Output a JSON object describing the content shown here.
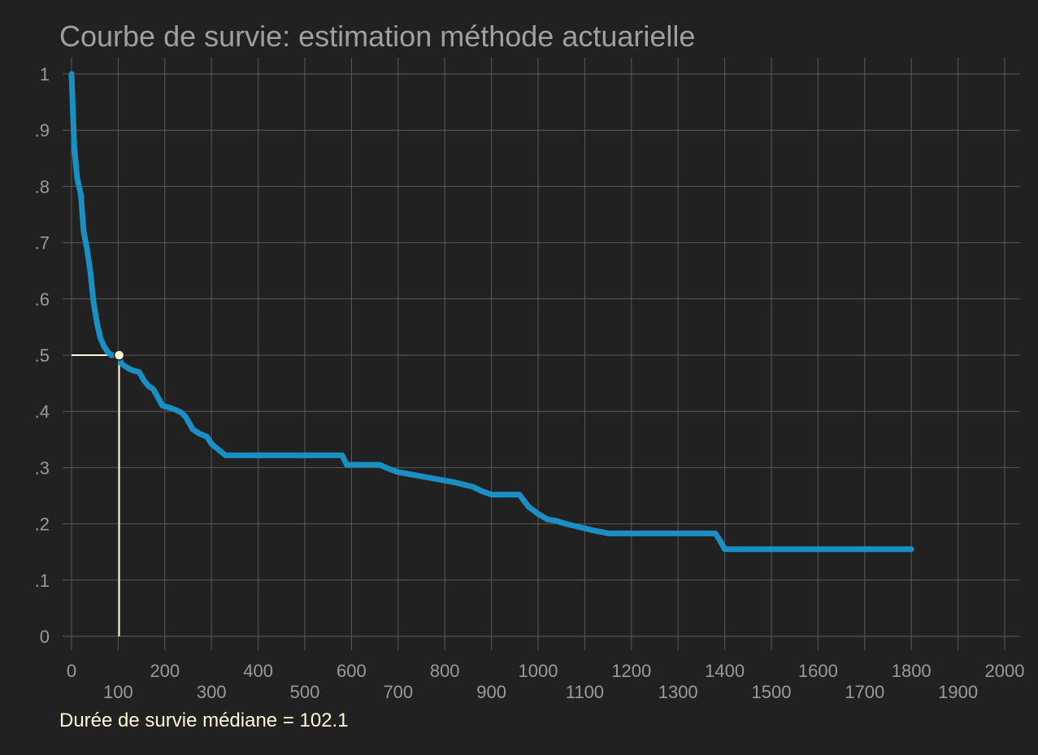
{
  "chart_data": {
    "type": "line",
    "title": "Courbe de survie: estimation méthode actuarielle",
    "xlabel": "",
    "ylabel": "",
    "xlim": [
      0,
      2000
    ],
    "ylim": [
      0,
      1
    ],
    "grid": true,
    "x_ticks": [
      "0",
      "100",
      "200",
      "300",
      "400",
      "500",
      "600",
      "700",
      "800",
      "900",
      "1000",
      "1100",
      "1200",
      "1300",
      "1400",
      "1500",
      "1600",
      "1700",
      "1800",
      "1900",
      "2000"
    ],
    "y_ticks": [
      "0",
      ".1",
      ".2",
      ".3",
      ".4",
      ".5",
      ".6",
      ".7",
      ".8",
      ".9",
      "1"
    ],
    "colors": {
      "curve": "#1a8fc4",
      "median": "#fff7d6",
      "background": "#212121",
      "grid": "#5a5a5a",
      "text": "#9a9a9a"
    },
    "series": [
      {
        "x": [
          0,
          6,
          12,
          20,
          26,
          33,
          40,
          47,
          55,
          62,
          70,
          78,
          85,
          92,
          98,
          102.1,
          107,
          115,
          125,
          135,
          145,
          155,
          165,
          175,
          185,
          195,
          205,
          215,
          225,
          235,
          245,
          260,
          275,
          290,
          300,
          330,
          350,
          370,
          400,
          450,
          500,
          550,
          560,
          565,
          580,
          590,
          600,
          620,
          640,
          660,
          680,
          700,
          720,
          740,
          760,
          780,
          800,
          820,
          840,
          860,
          870,
          880,
          900,
          920,
          940,
          960,
          980,
          1000,
          1020,
          1040,
          1060,
          1080,
          1100,
          1120,
          1140,
          1150,
          1160,
          1180,
          1200,
          1220,
          1240,
          1260,
          1280,
          1300,
          1320,
          1340,
          1360,
          1370,
          1380,
          1390,
          1400,
          1420,
          1440,
          1460,
          1480,
          1500,
          1600,
          1700,
          1800
        ],
        "y": [
          1,
          0.87,
          0.815,
          0.785,
          0.72,
          0.69,
          0.65,
          0.595,
          0.555,
          0.53,
          0.515,
          0.505,
          0.5,
          0.5,
          0.5,
          0.5,
          0.485,
          0.48,
          0.475,
          0.472,
          0.47,
          0.455,
          0.445,
          0.44,
          0.425,
          0.41,
          0.408,
          0.405,
          0.402,
          0.398,
          0.39,
          0.368,
          0.36,
          0.355,
          0.342,
          0.322,
          0.322,
          0.322,
          0.322,
          0.322,
          0.322,
          0.322,
          0.322,
          0.322,
          0.322,
          0.305,
          0.305,
          0.305,
          0.305,
          0.305,
          0.298,
          0.292,
          0.289,
          0.286,
          0.283,
          0.28,
          0.277,
          0.274,
          0.27,
          0.266,
          0.262,
          0.258,
          0.252,
          0.252,
          0.252,
          0.252,
          0.23,
          0.218,
          0.208,
          0.205,
          0.2,
          0.196,
          0.192,
          0.188,
          0.185,
          0.183,
          0.183,
          0.183,
          0.183,
          0.183,
          0.183,
          0.183,
          0.183,
          0.183,
          0.183,
          0.183,
          0.183,
          0.183,
          0.183,
          0.17,
          0.155,
          0.155,
          0.155,
          0.155,
          0.155,
          0.155,
          0.155,
          0.155,
          0.155
        ]
      }
    ],
    "median": {
      "x": 102.1,
      "y": 0.5
    },
    "annotation": "Durée de survie médiane = 102.1"
  }
}
